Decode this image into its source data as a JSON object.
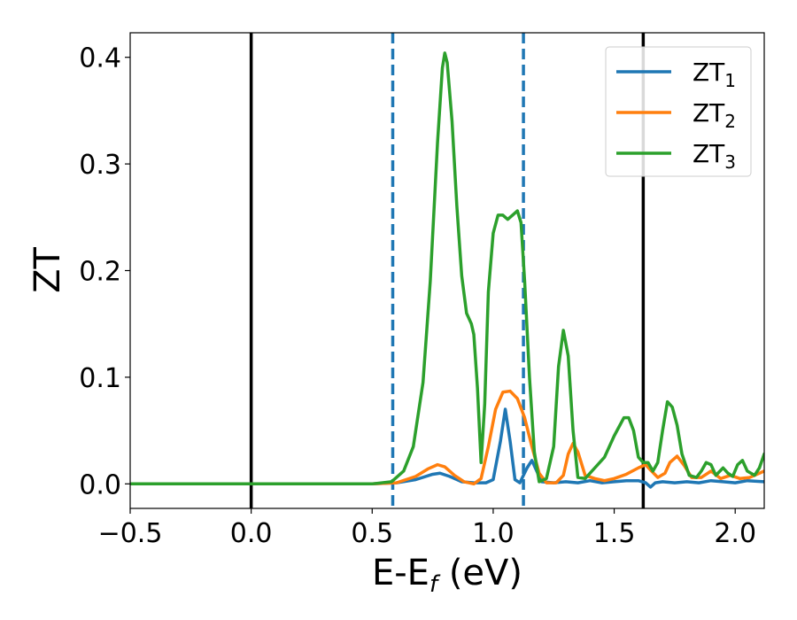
{
  "chart_data": {
    "type": "line",
    "xlabel": "E-E",
    "xlabel_sub": "f",
    "xlabel_unit": " (eV)",
    "ylabel": "ZT",
    "xlim": [
      -0.5,
      2.12
    ],
    "ylim": [
      -0.023,
      0.423
    ],
    "xticks": [
      -0.5,
      0.0,
      0.5,
      1.0,
      1.5,
      2.0
    ],
    "xtick_labels": [
      "−0.5",
      "0.0",
      "0.5",
      "1.0",
      "1.5",
      "2.0"
    ],
    "yticks": [
      0.0,
      0.1,
      0.2,
      0.3,
      0.4
    ],
    "ytick_labels": [
      "0.0",
      "0.1",
      "0.2",
      "0.3",
      "0.4"
    ],
    "grid": false,
    "legend_position": "top-right",
    "vertical_lines": [
      {
        "x": 0.0,
        "style": "solid",
        "color": "#000000"
      },
      {
        "x": 0.585,
        "style": "dashed",
        "color": "#1f77b4"
      },
      {
        "x": 1.125,
        "style": "dashed",
        "color": "#1f77b4"
      },
      {
        "x": 1.62,
        "style": "solid",
        "color": "#000000"
      }
    ],
    "series": [
      {
        "name": "ZT",
        "name_sub": "1",
        "color": "#1f77b4",
        "points": [
          [
            -0.5,
            0
          ],
          [
            0.5,
            0
          ],
          [
            0.6,
            0.001
          ],
          [
            0.68,
            0.004
          ],
          [
            0.75,
            0.009
          ],
          [
            0.78,
            0.01
          ],
          [
            0.82,
            0.007
          ],
          [
            0.87,
            0.002
          ],
          [
            0.92,
            0.001
          ],
          [
            0.97,
            0.001
          ],
          [
            1.0,
            0.004
          ],
          [
            1.03,
            0.04
          ],
          [
            1.05,
            0.07
          ],
          [
            1.07,
            0.04
          ],
          [
            1.09,
            0.004
          ],
          [
            1.11,
            0.001
          ],
          [
            1.14,
            0.015
          ],
          [
            1.16,
            0.022
          ],
          [
            1.18,
            0.012
          ],
          [
            1.2,
            0.002
          ],
          [
            1.25,
            0.001
          ],
          [
            1.3,
            0.002
          ],
          [
            1.35,
            0.001
          ],
          [
            1.4,
            0.003
          ],
          [
            1.45,
            0.001
          ],
          [
            1.5,
            0.002
          ],
          [
            1.55,
            0.003
          ],
          [
            1.6,
            0.003
          ],
          [
            1.63,
            0.001
          ],
          [
            1.65,
            -0.003
          ],
          [
            1.67,
            0.001
          ],
          [
            1.7,
            0.002
          ],
          [
            1.75,
            0.001
          ],
          [
            1.8,
            0.002
          ],
          [
            1.85,
            0.001
          ],
          [
            1.9,
            0.003
          ],
          [
            1.95,
            0.002
          ],
          [
            2.0,
            0.001
          ],
          [
            2.05,
            0.003
          ],
          [
            2.12,
            0.002
          ]
        ]
      },
      {
        "name": "ZT",
        "name_sub": "2",
        "color": "#ff7f0e",
        "points": [
          [
            -0.5,
            0
          ],
          [
            0.5,
            0
          ],
          [
            0.6,
            0.001
          ],
          [
            0.68,
            0.007
          ],
          [
            0.73,
            0.014
          ],
          [
            0.77,
            0.018
          ],
          [
            0.8,
            0.016
          ],
          [
            0.84,
            0.008
          ],
          [
            0.88,
            0.002
          ],
          [
            0.92,
            0.0
          ],
          [
            0.95,
            0.005
          ],
          [
            0.98,
            0.035
          ],
          [
            1.01,
            0.07
          ],
          [
            1.04,
            0.086
          ],
          [
            1.07,
            0.087
          ],
          [
            1.1,
            0.08
          ],
          [
            1.13,
            0.062
          ],
          [
            1.16,
            0.035
          ],
          [
            1.19,
            0.01
          ],
          [
            1.22,
            0.001
          ],
          [
            1.26,
            0.001
          ],
          [
            1.29,
            0.008
          ],
          [
            1.31,
            0.028
          ],
          [
            1.33,
            0.038
          ],
          [
            1.35,
            0.03
          ],
          [
            1.38,
            0.008
          ],
          [
            1.42,
            0.005
          ],
          [
            1.46,
            0.003
          ],
          [
            1.5,
            0.005
          ],
          [
            1.55,
            0.009
          ],
          [
            1.6,
            0.015
          ],
          [
            1.63,
            0.018
          ],
          [
            1.65,
            0.013
          ],
          [
            1.68,
            0.006
          ],
          [
            1.71,
            0.01
          ],
          [
            1.73,
            0.02
          ],
          [
            1.76,
            0.026
          ],
          [
            1.79,
            0.017
          ],
          [
            1.82,
            0.006
          ],
          [
            1.86,
            0.006
          ],
          [
            1.9,
            0.012
          ],
          [
            1.94,
            0.005
          ],
          [
            1.98,
            0.008
          ],
          [
            2.02,
            0.005
          ],
          [
            2.06,
            0.006
          ],
          [
            2.1,
            0.01
          ],
          [
            2.12,
            0.012
          ]
        ]
      },
      {
        "name": "ZT",
        "name_sub": "3",
        "color": "#2ca02c",
        "points": [
          [
            -0.5,
            0
          ],
          [
            0.5,
            0
          ],
          [
            0.58,
            0.002
          ],
          [
            0.63,
            0.012
          ],
          [
            0.67,
            0.035
          ],
          [
            0.71,
            0.095
          ],
          [
            0.74,
            0.19
          ],
          [
            0.77,
            0.32
          ],
          [
            0.79,
            0.39
          ],
          [
            0.8,
            0.404
          ],
          [
            0.81,
            0.395
          ],
          [
            0.83,
            0.34
          ],
          [
            0.85,
            0.26
          ],
          [
            0.87,
            0.195
          ],
          [
            0.89,
            0.16
          ],
          [
            0.91,
            0.15
          ],
          [
            0.92,
            0.14
          ],
          [
            0.935,
            0.09
          ],
          [
            0.95,
            0.02
          ],
          [
            0.965,
            0.075
          ],
          [
            0.98,
            0.18
          ],
          [
            1.0,
            0.235
          ],
          [
            1.02,
            0.252
          ],
          [
            1.04,
            0.252
          ],
          [
            1.06,
            0.248
          ],
          [
            1.08,
            0.252
          ],
          [
            1.1,
            0.256
          ],
          [
            1.115,
            0.245
          ],
          [
            1.13,
            0.19
          ],
          [
            1.15,
            0.1
          ],
          [
            1.17,
            0.03
          ],
          [
            1.19,
            0.002
          ],
          [
            1.22,
            0.005
          ],
          [
            1.25,
            0.035
          ],
          [
            1.27,
            0.11
          ],
          [
            1.29,
            0.144
          ],
          [
            1.31,
            0.12
          ],
          [
            1.33,
            0.05
          ],
          [
            1.35,
            0.006
          ],
          [
            1.38,
            0.005
          ],
          [
            1.42,
            0.015
          ],
          [
            1.46,
            0.025
          ],
          [
            1.5,
            0.045
          ],
          [
            1.54,
            0.062
          ],
          [
            1.56,
            0.062
          ],
          [
            1.58,
            0.05
          ],
          [
            1.6,
            0.025
          ],
          [
            1.62,
            0.02
          ],
          [
            1.64,
            0.02
          ],
          [
            1.66,
            0.012
          ],
          [
            1.68,
            0.02
          ],
          [
            1.7,
            0.05
          ],
          [
            1.72,
            0.077
          ],
          [
            1.74,
            0.072
          ],
          [
            1.76,
            0.055
          ],
          [
            1.78,
            0.028
          ],
          [
            1.81,
            0.008
          ],
          [
            1.84,
            0.006
          ],
          [
            1.86,
            0.012
          ],
          [
            1.88,
            0.02
          ],
          [
            1.9,
            0.018
          ],
          [
            1.92,
            0.008
          ],
          [
            1.95,
            0.015
          ],
          [
            1.97,
            0.01
          ],
          [
            1.99,
            0.007
          ],
          [
            2.01,
            0.018
          ],
          [
            2.03,
            0.022
          ],
          [
            2.05,
            0.012
          ],
          [
            2.08,
            0.008
          ],
          [
            2.1,
            0.015
          ],
          [
            2.12,
            0.028
          ]
        ]
      }
    ]
  }
}
